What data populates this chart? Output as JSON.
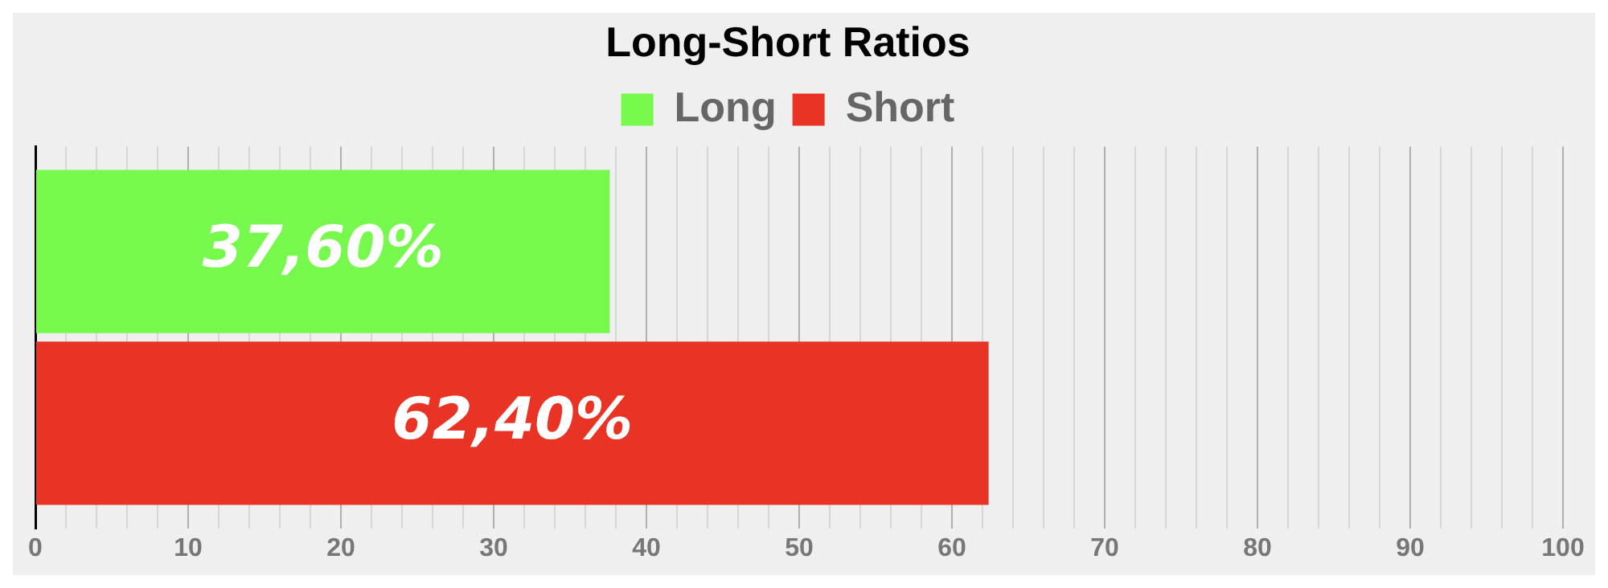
{
  "chart_data": {
    "type": "bar",
    "orientation": "horizontal",
    "title": "Long-Short Ratios",
    "categories": [
      null
    ],
    "series": [
      {
        "name": "Long",
        "color": "#76f94c",
        "values": [
          37.6
        ],
        "value_labels": [
          "37,60%"
        ]
      },
      {
        "name": "Short",
        "color": "#e83325",
        "values": [
          62.4
        ],
        "value_labels": [
          "62,40%"
        ]
      }
    ],
    "xlim": [
      0,
      100
    ],
    "xticks": [
      0,
      {
        "value": 2,
        "label": null
      },
      {
        "value": 4,
        "label": null
      },
      {
        "value": 6,
        "label": null
      },
      {
        "value": 8,
        "label": null
      },
      10,
      {
        "value": 12,
        "label": null
      },
      {
        "value": 14,
        "label": null
      },
      {
        "value": 16,
        "label": null
      },
      {
        "value": 18,
        "label": null
      },
      20,
      {
        "value": 22,
        "label": null
      },
      {
        "value": 24,
        "label": null
      },
      {
        "value": 26,
        "label": null
      },
      {
        "value": 28,
        "label": null
      },
      30,
      {
        "value": 32,
        "label": null
      },
      {
        "value": 34,
        "label": null
      },
      {
        "value": 36,
        "label": null
      },
      {
        "value": 38,
        "label": null
      },
      40,
      {
        "value": 42,
        "label": null
      },
      {
        "value": 44,
        "label": null
      },
      {
        "value": 46,
        "label": null
      },
      {
        "value": 48,
        "label": null
      },
      50,
      {
        "value": 52,
        "label": null
      },
      {
        "value": 54,
        "label": null
      },
      {
        "value": 56,
        "label": null
      },
      {
        "value": 58,
        "label": null
      },
      60,
      {
        "value": 62,
        "label": null
      },
      {
        "value": 64,
        "label": null
      },
      {
        "value": 66,
        "label": null
      },
      {
        "value": 68,
        "label": null
      },
      70,
      {
        "value": 72,
        "label": null
      },
      {
        "value": 74,
        "label": null
      },
      {
        "value": 76,
        "label": null
      },
      {
        "value": 78,
        "label": null
      },
      80,
      {
        "value": 82,
        "label": null
      },
      {
        "value": 84,
        "label": null
      },
      {
        "value": 86,
        "label": null
      },
      {
        "value": 88,
        "label": null
      },
      90,
      {
        "value": 92,
        "label": null
      },
      {
        "value": 94,
        "label": null
      },
      {
        "value": 96,
        "label": null
      },
      {
        "value": 98,
        "label": null
      },
      100
    ],
    "grid": "x",
    "legend": "top"
  }
}
